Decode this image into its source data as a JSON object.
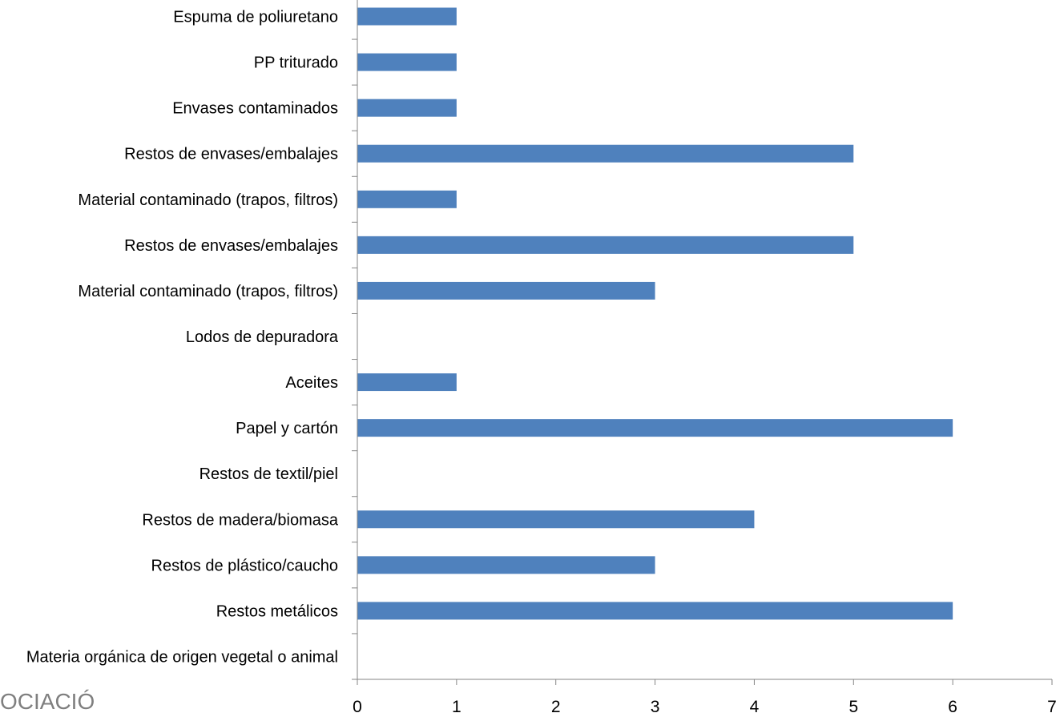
{
  "chart_data": {
    "type": "bar",
    "orientation": "horizontal",
    "categories": [
      "Espuma de poliuretano",
      "PP triturado",
      "Envases contaminados",
      "Restos de envases/embalajes",
      "Material contaminado (trapos, filtros)",
      "Restos de envases/embalajes",
      "Material contaminado (trapos, filtros)",
      "Lodos de depuradora",
      "Aceites",
      "Papel y cartón",
      "Restos de textil/piel",
      "Restos de madera/biomasa",
      "Restos de plástico/caucho",
      "Restos metálicos",
      "Materia orgánica de origen vegetal o animal"
    ],
    "values": [
      1,
      1,
      1,
      5,
      1,
      5,
      3,
      0,
      1,
      6,
      0,
      4,
      3,
      6,
      0
    ],
    "xlim": [
      0,
      7
    ],
    "xticks": [
      0,
      1,
      2,
      3,
      4,
      5,
      6,
      7
    ],
    "title": "",
    "xlabel": "",
    "ylabel": "",
    "grid": false,
    "bar_color": "#4f81bd",
    "axis_color": "#868686"
  },
  "watermark": {
    "text": "OCIACIÓ"
  }
}
